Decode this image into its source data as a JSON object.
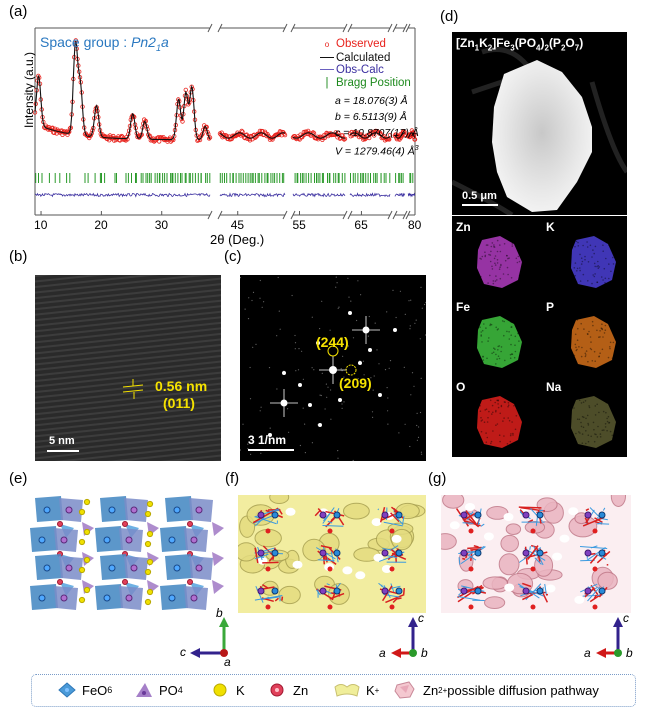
{
  "panels": {
    "a": {
      "label": "(a)"
    },
    "b": {
      "label": "(b)"
    },
    "c": {
      "label": "(c)"
    },
    "d": {
      "label": "(d)"
    },
    "e": {
      "label": "(e)"
    },
    "f": {
      "label": "(f)"
    },
    "g": {
      "label": "(g)"
    }
  },
  "chart_data": {
    "type": "line",
    "title": "Space group : Pn2₁a",
    "title_prefix": "Space group : ",
    "title_italic": "Pn2",
    "title_sub": "1",
    "title_suffix": "a",
    "xlabel": "2θ (Deg.)",
    "ylabel": "Intensity (a.u.)",
    "x_ticks": [
      "10",
      "20",
      "30",
      "45",
      "55",
      "65",
      "80"
    ],
    "x_tick_values": [
      10,
      20,
      30,
      45,
      55,
      65,
      80
    ],
    "axis_breaks": [
      "38–42",
      "53–54",
      "62–63",
      "70–72",
      "75–77"
    ],
    "segments": [
      [
        9,
        38
      ],
      [
        42,
        53
      ],
      [
        54,
        62
      ],
      [
        63,
        70
      ],
      [
        72,
        75
      ],
      [
        77,
        80
      ]
    ],
    "legend": [
      {
        "name": "Observed",
        "marker": "circle",
        "color": "#e8231d"
      },
      {
        "name": "Calculated",
        "marker": "line",
        "color": "#111111"
      },
      {
        "name": "Obs-Calc",
        "marker": "line",
        "color": "#3b2fa0"
      },
      {
        "name": "Bragg Position",
        "marker": "tick",
        "color": "#1e8a1e"
      }
    ],
    "legend_position": "top-right",
    "lattice": [
      {
        "param": "a",
        "value": "18.076(3) Å"
      },
      {
        "param": "b",
        "value": "6.5113(9) Å"
      },
      {
        "param": "c",
        "value": "10.8707(17) Å"
      },
      {
        "param": "V",
        "value": "1279.46(4) Å",
        "sup": "3"
      }
    ],
    "peaks": [
      {
        "x": 9.6,
        "rel_intensity": 0.55
      },
      {
        "x": 15.7,
        "rel_intensity": 1.0
      },
      {
        "x": 16.5,
        "rel_intensity": 0.55
      },
      {
        "x": 19.2,
        "rel_intensity": 0.35
      },
      {
        "x": 25.2,
        "rel_intensity": 0.28
      },
      {
        "x": 27.2,
        "rel_intensity": 0.2
      },
      {
        "x": 32.8,
        "rel_intensity": 0.45
      },
      {
        "x": 34.0,
        "rel_intensity": 0.52
      },
      {
        "x": 35.0,
        "rel_intensity": 0.58
      },
      {
        "x": 37.2,
        "rel_intensity": 0.15
      }
    ]
  },
  "panel_b": {
    "spacing": "0.56 nm",
    "plane": "(011)",
    "scale_bar": "5 nm"
  },
  "panel_c": {
    "spot1": "(244)",
    "spot2": "(209)",
    "scale_bar": "3 1/nm"
  },
  "panel_d": {
    "formula_parts": {
      "p1": "[Zn",
      "s1": "1",
      "p2": "K",
      "s2": "2",
      "p3": "]Fe",
      "s3": "3",
      "p4": "(PO",
      "s4": "4",
      "p5": ")",
      "s5": "2",
      "p6": "(P",
      "s6": "2",
      "p7": "O",
      "s7": "7",
      "p8": ")"
    },
    "scale_bar": "0.5 μm",
    "maps": [
      {
        "element": "Zn",
        "color": "#b03cc0"
      },
      {
        "element": "K",
        "color": "#4b3fd6"
      },
      {
        "element": "Fe",
        "color": "#3fc23f"
      },
      {
        "element": "P",
        "color": "#d4701a"
      },
      {
        "element": "O",
        "color": "#e0201c"
      },
      {
        "element": "Na",
        "color": "#5a5a30"
      }
    ]
  },
  "axes": {
    "e": {
      "up": "b",
      "left": "c",
      "origin": "a"
    },
    "f": {
      "up": "c",
      "left": "a",
      "origin": "b"
    },
    "g": {
      "up": "c",
      "left": "a",
      "origin": "b"
    }
  },
  "legend": {
    "items": [
      {
        "label": "FeO",
        "sub": "6",
        "icon": "feo6-octahedron-icon",
        "color": "#4a9ad8"
      },
      {
        "label": "PO",
        "sub": "4",
        "icon": "po4-tetrahedron-icon",
        "color": "#a57fc8"
      },
      {
        "label": "K",
        "icon": "k-atom-icon",
        "color": "#f0e000"
      },
      {
        "label": "Zn",
        "icon": "zn-atom-icon",
        "color": "#e0405a"
      },
      {
        "label": "K",
        "sup": "+",
        "icon": "k-isosurface-icon",
        "color": "#f0ee9a"
      },
      {
        "label": "Zn",
        "sup": "2+",
        "suffix": " possible diffusion pathway",
        "icon": "zn-isosurface-icon",
        "color": "#f0b8c4"
      }
    ]
  }
}
